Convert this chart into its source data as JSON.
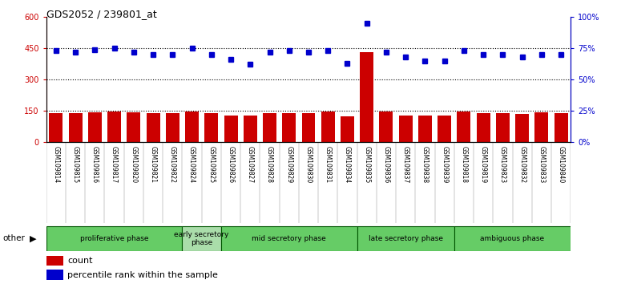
{
  "title": "GDS2052 / 239801_at",
  "samples": [
    "GSM109814",
    "GSM109815",
    "GSM109816",
    "GSM109817",
    "GSM109820",
    "GSM109821",
    "GSM109822",
    "GSM109824",
    "GSM109825",
    "GSM109826",
    "GSM109827",
    "GSM109828",
    "GSM109829",
    "GSM109830",
    "GSM109831",
    "GSM109834",
    "GSM109835",
    "GSM109836",
    "GSM109837",
    "GSM109838",
    "GSM109839",
    "GSM109818",
    "GSM109819",
    "GSM109823",
    "GSM109832",
    "GSM109833",
    "GSM109840"
  ],
  "counts": [
    140,
    138,
    143,
    148,
    143,
    138,
    140,
    148,
    138,
    128,
    128,
    138,
    138,
    140,
    148,
    125,
    430,
    145,
    128,
    128,
    128,
    145,
    138,
    140,
    135,
    142,
    138
  ],
  "percentiles": [
    73,
    72,
    74,
    75,
    72,
    70,
    70,
    75,
    70,
    66,
    62,
    72,
    73,
    72,
    73,
    63,
    95,
    72,
    68,
    65,
    65,
    73,
    70,
    70,
    68,
    70,
    70
  ],
  "phases": [
    {
      "label": "proliferative phase",
      "start": 0,
      "end": 7,
      "color": "#66cc66"
    },
    {
      "label": "early secretory\nphase",
      "start": 7,
      "end": 9,
      "color": "#aaddaa"
    },
    {
      "label": "mid secretory phase",
      "start": 9,
      "end": 16,
      "color": "#66cc66"
    },
    {
      "label": "late secretory phase",
      "start": 16,
      "end": 21,
      "color": "#66cc66"
    },
    {
      "label": "ambiguous phase",
      "start": 21,
      "end": 27,
      "color": "#66cc66"
    }
  ],
  "bar_color": "#cc0000",
  "dot_color": "#0000cc",
  "ylim_left": [
    0,
    600
  ],
  "ylim_right": [
    0,
    100
  ],
  "yticks_left": [
    0,
    150,
    300,
    450,
    600
  ],
  "yticks_right": [
    0,
    25,
    50,
    75,
    100
  ],
  "ytick_labels_right": [
    "0%",
    "25%",
    "50%",
    "75%",
    "100%"
  ],
  "plot_bg_color": "#ffffff",
  "label_bg_color": "#c8c8c8"
}
